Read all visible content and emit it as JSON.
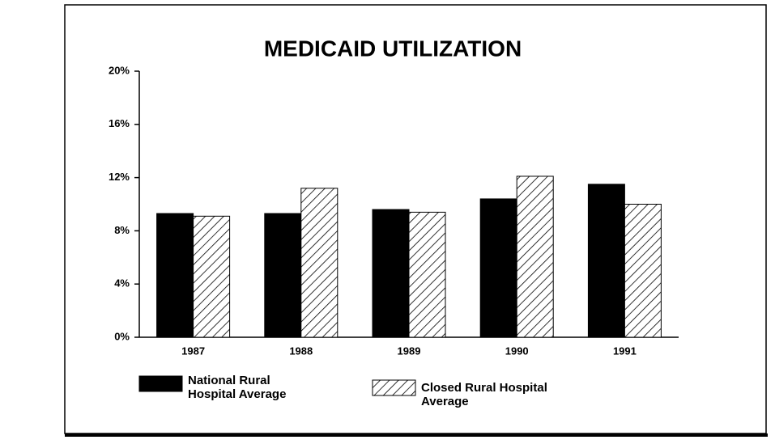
{
  "chart_data": {
    "type": "bar",
    "title": "MEDICAID UTILIZATION",
    "categories": [
      "1987",
      "1988",
      "1989",
      "1990",
      "1991"
    ],
    "series": [
      {
        "name": "National Rural Hospital Average",
        "color": "#000000",
        "pattern": "solid",
        "values": [
          9.3,
          9.3,
          9.6,
          10.4,
          11.5
        ]
      },
      {
        "name": "Closed Rural Hospital Average",
        "color": "#000000",
        "pattern": "hatch",
        "values": [
          9.1,
          11.2,
          9.4,
          12.1,
          10.0
        ]
      }
    ],
    "ylim": [
      0,
      20
    ],
    "yticks": [
      {
        "value": 0,
        "label": "0%"
      },
      {
        "value": 4,
        "label": "4%"
      },
      {
        "value": 8,
        "label": "8%"
      },
      {
        "value": 12,
        "label": "12%"
      },
      {
        "value": 16,
        "label": "16%"
      },
      {
        "value": 20,
        "label": "20%"
      }
    ],
    "grid": false
  }
}
